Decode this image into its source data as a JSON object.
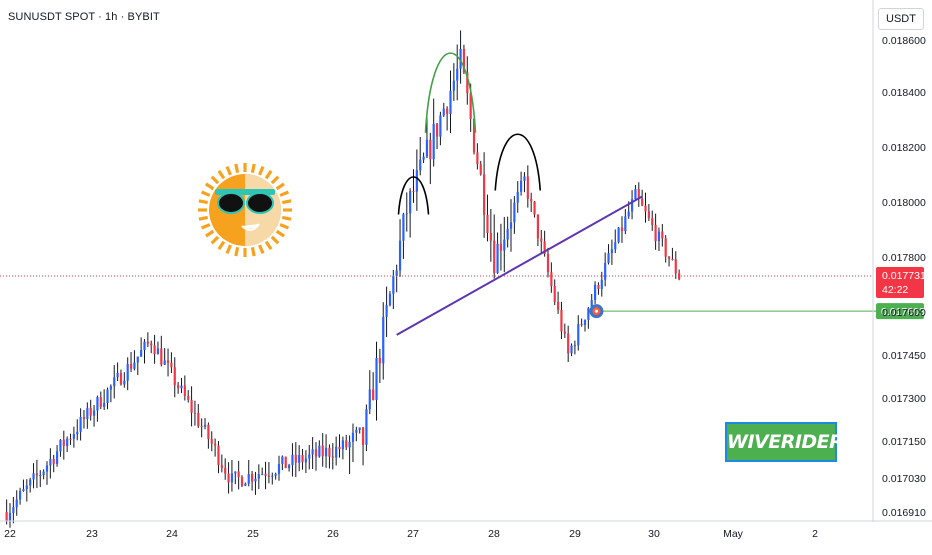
{
  "header": {
    "symbol_line": "SUNUSDT SPOT · 1h · BYBIT"
  },
  "price_axis": {
    "currency": "USDT",
    "ticks": [
      "0.018600",
      "0.018400",
      "0.018200",
      "0.018000",
      "0.017800",
      "0.017600",
      "0.017450",
      "0.017300",
      "0.017150",
      "0.017030",
      "0.016910"
    ]
  },
  "time_axis": {
    "labels": [
      "22",
      "23",
      "24",
      "25",
      "26",
      "27",
      "28",
      "29",
      "30",
      "May",
      "2"
    ]
  },
  "current_price": {
    "value": "0.017731",
    "countdown": "42:22",
    "color": "#f23645"
  },
  "target_level": {
    "value": "0.017603",
    "color": "#4caf50"
  },
  "watermark": {
    "text": "WIVERIDERS"
  },
  "colors": {
    "up": "#2962ff",
    "down": "#f23645",
    "wick": "#131722",
    "trendline": "#5e35b1",
    "head": "#43a047",
    "shoulder": "#000000"
  },
  "chart_data": {
    "type": "candlestick",
    "title": "SUNUSDT SPOT · 1h · BYBIT",
    "y_unit": "USDT",
    "x_range": [
      "Apr 22",
      "May 2"
    ],
    "approx_daily_close": {
      "x": [
        "22",
        "23",
        "24",
        "25",
        "26",
        "27",
        "28",
        "29",
        "30"
      ],
      "close": [
        0.01722,
        0.01728,
        0.01738,
        0.01712,
        0.01726,
        0.0177,
        0.01785,
        0.01778,
        0.01775
      ]
    },
    "key_points": [
      {
        "x": "Apr 21 23:00",
        "y": 0.01691
      },
      {
        "x": "Apr 23 18:00",
        "y": 0.0175
      },
      {
        "x": "Apr 24 18:00",
        "y": 0.01702
      },
      {
        "x": "Apr 26 09:00",
        "y": 0.01715
      },
      {
        "x": "Apr 26 22:00",
        "y": 0.01797
      },
      {
        "x": "Apr 27 14:00",
        "y": 0.01851
      },
      {
        "x": "Apr 28 00:00",
        "y": 0.0178
      },
      {
        "x": "Apr 28 09:00",
        "y": 0.01808
      },
      {
        "x": "Apr 28 22:00",
        "y": 0.01745
      },
      {
        "x": "Apr 29 18:00",
        "y": 0.01802
      },
      {
        "x": "Apr 30 07:00",
        "y": 0.01773
      }
    ],
    "annotations": [
      {
        "type": "neckline",
        "from": {
          "x": "Apr 26 19:00",
          "y": 0.01752
        },
        "to": {
          "x": "Apr 29 20:00",
          "y": 0.01802
        }
      },
      {
        "type": "left-shoulder-arc",
        "peak": {
          "x": "Apr 27 00:00",
          "y": 0.0181
        }
      },
      {
        "type": "head-arc",
        "peak": {
          "x": "Apr 27 11:00",
          "y": 0.01857
        }
      },
      {
        "type": "right-shoulder-arc",
        "peak": {
          "x": "Apr 28 07:00",
          "y": 0.01826
        }
      },
      {
        "type": "target-line",
        "from": "Apr 29 07:00",
        "value": 0.017603
      }
    ]
  }
}
